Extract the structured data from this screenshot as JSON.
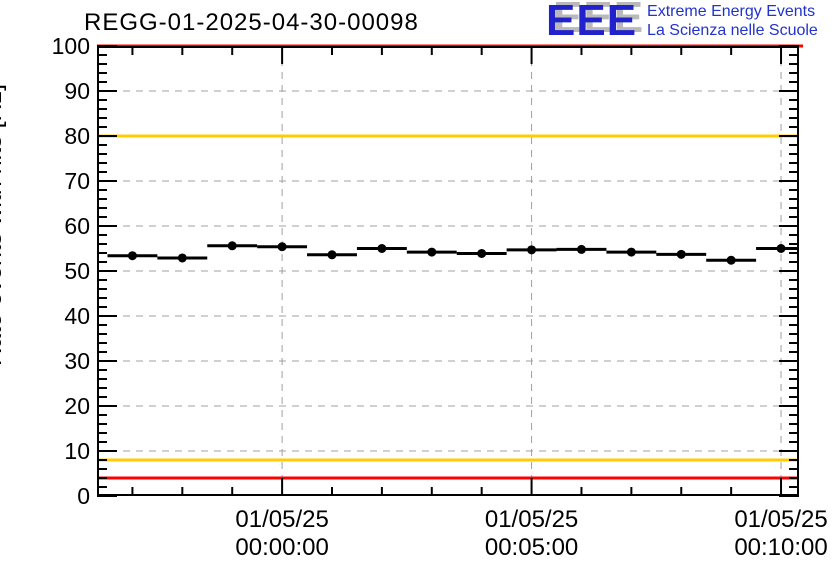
{
  "logo": {
    "acronym": "EEE",
    "line1": "Extreme Energy Events",
    "line2": "La Scienza nelle Scuole",
    "color": "#2222cc"
  },
  "chart_data": {
    "type": "line",
    "title": "REGG-01-2025-04-30-00098",
    "ylabel": "Rate events with hits [Hz]",
    "xlabel": "",
    "ylim": [
      0,
      100
    ],
    "xlim": [
      -3.71,
      10.36
    ],
    "x_unit": "minutes relative to 01/05/25 00:00:00",
    "grid": "dashed",
    "grid_color": "#a0a0a0",
    "y_major_ticks": [
      0,
      10,
      20,
      30,
      40,
      50,
      60,
      70,
      80,
      90,
      100
    ],
    "y_minor_step": 2,
    "x_major_ticks": [
      {
        "t": 0,
        "label": [
          "01/05/25",
          "00:00:00"
        ]
      },
      {
        "t": 5,
        "label": [
          "01/05/25",
          "00:05:00"
        ]
      },
      {
        "t": 10,
        "label": [
          "01/05/25",
          "00:10:00"
        ]
      }
    ],
    "x_minor_step": 1,
    "threshold_lines": [
      {
        "y": 100,
        "color": "#ff0000",
        "role": "alarm-high"
      },
      {
        "y": 80,
        "color": "#ffcc00",
        "role": "warning-high"
      },
      {
        "y": 8,
        "color": "#ffcc00",
        "role": "warning-low"
      },
      {
        "y": 4,
        "color": "#ff0000",
        "role": "alarm-low"
      }
    ],
    "series": [
      {
        "name": "rate-events-with-hits",
        "marker": "filled-circle",
        "color": "#000000",
        "x_error": 0.5,
        "points": [
          [
            -3,
            53.4
          ],
          [
            -2,
            52.9
          ],
          [
            -1,
            55.6
          ],
          [
            0,
            55.4
          ],
          [
            1,
            53.6
          ],
          [
            2,
            55.0
          ],
          [
            3,
            54.2
          ],
          [
            4,
            53.9
          ],
          [
            5,
            54.7
          ],
          [
            6,
            54.8
          ],
          [
            7,
            54.2
          ],
          [
            8,
            53.7
          ],
          [
            9,
            52.4
          ],
          [
            10,
            55.0
          ]
        ]
      }
    ]
  }
}
